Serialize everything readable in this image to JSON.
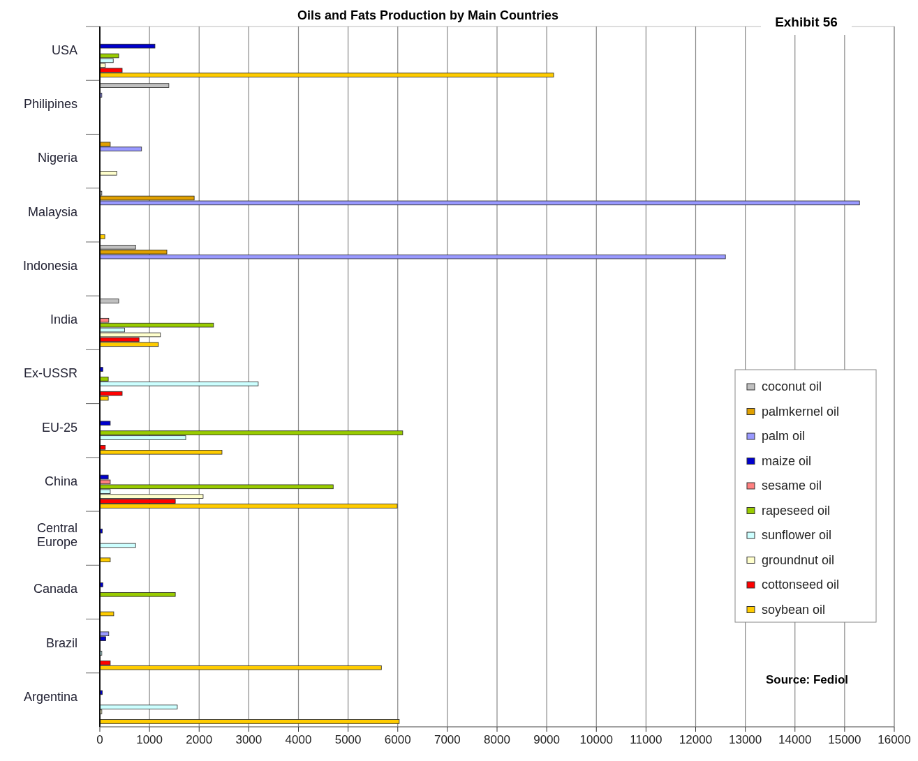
{
  "chart_data": {
    "type": "bar",
    "orientation": "horizontal",
    "title": "Oils and Fats Production by Main Countries",
    "annotations": [
      "Exhibit 56",
      "Source: Fediol"
    ],
    "categories": [
      "USA",
      "Philipines",
      "Nigeria",
      "Malaysia",
      "Indonesia",
      "India",
      "Ex-USSR",
      "EU-25",
      "China",
      "Central Europe",
      "Canada",
      "Brazil",
      "Argentina"
    ],
    "series": [
      {
        "name": "coconut oil",
        "color": "#c0c0c0",
        "values": [
          null,
          1390,
          null,
          40,
          720,
          380,
          null,
          null,
          null,
          null,
          null,
          null,
          null
        ]
      },
      {
        "name": "palmkernel oil",
        "color": "#e0a000",
        "values": [
          null,
          null,
          210,
          1900,
          1350,
          null,
          null,
          null,
          null,
          null,
          null,
          null,
          null
        ]
      },
      {
        "name": "palm oil",
        "color": "#9999ff",
        "values": [
          null,
          40,
          840,
          15300,
          12600,
          null,
          null,
          null,
          null,
          null,
          null,
          180,
          null
        ]
      },
      {
        "name": "maize oil",
        "color": "#0000cc",
        "values": [
          1110,
          null,
          null,
          null,
          null,
          null,
          60,
          210,
          170,
          50,
          60,
          120,
          50
        ]
      },
      {
        "name": "sesame oil",
        "color": "#ff8080",
        "values": [
          null,
          null,
          null,
          null,
          null,
          180,
          null,
          null,
          210,
          null,
          null,
          null,
          null
        ]
      },
      {
        "name": "rapeseed oil",
        "color": "#99cc00",
        "values": [
          380,
          null,
          null,
          null,
          null,
          2290,
          170,
          6100,
          4700,
          null,
          1520,
          null,
          null
        ]
      },
      {
        "name": "sunflower oil",
        "color": "#ccffff",
        "values": [
          270,
          null,
          null,
          null,
          null,
          500,
          3190,
          1730,
          210,
          720,
          null,
          40,
          1560
        ]
      },
      {
        "name": "groundnut oil",
        "color": "#ffffcc",
        "values": [
          110,
          null,
          340,
          null,
          null,
          1220,
          null,
          null,
          2080,
          null,
          null,
          null,
          40
        ]
      },
      {
        "name": "cottonseed oil",
        "color": "#ff0000",
        "values": [
          450,
          null,
          null,
          null,
          null,
          790,
          450,
          110,
          1520,
          null,
          null,
          210,
          null
        ]
      },
      {
        "name": "soybean oil",
        "color": "#ffcc00",
        "values": [
          9140,
          null,
          null,
          100,
          null,
          1180,
          170,
          2460,
          5990,
          210,
          280,
          5670,
          6030
        ]
      }
    ],
    "xlim": [
      0,
      16000
    ],
    "xticks": [
      0,
      1000,
      2000,
      3000,
      4000,
      5000,
      6000,
      7000,
      8000,
      9000,
      10000,
      11000,
      12000,
      13000,
      14000,
      15000,
      16000
    ],
    "grid": "x",
    "legend": "right"
  }
}
